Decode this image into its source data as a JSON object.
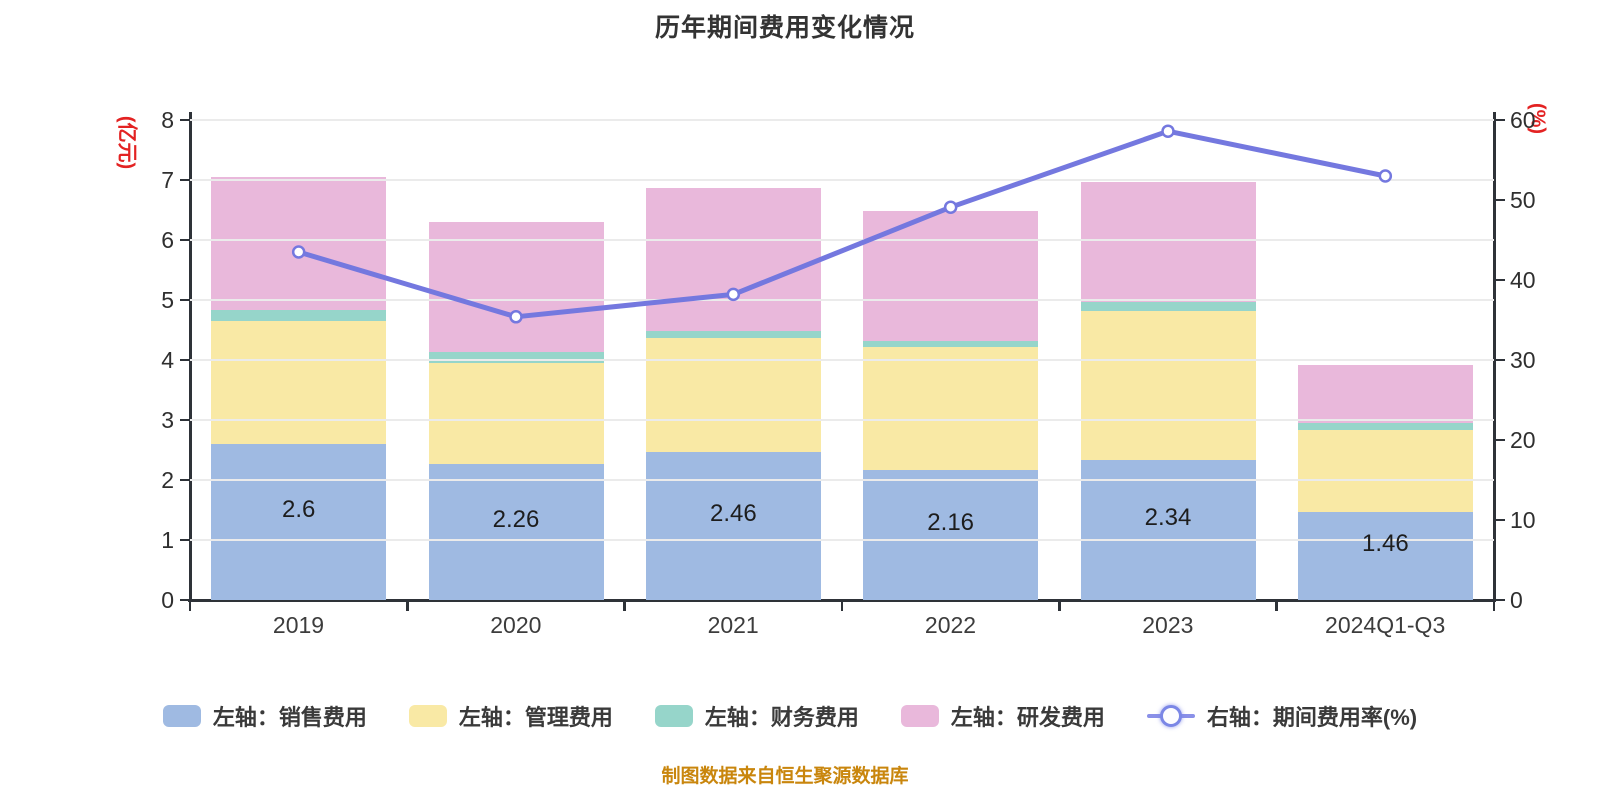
{
  "title": "历年期间费用变化情况",
  "footer": "制图数据来自恒生聚源数据库",
  "left_axis": {
    "name": "(亿元)",
    "min": 0,
    "max": 8,
    "tick_step": 1,
    "name_color": "#e32222"
  },
  "right_axis": {
    "name": "(%)",
    "min": 0,
    "max": 60,
    "tick_step": 10,
    "name_color": "#e32222"
  },
  "chart_data": {
    "type": "bar",
    "subtype": "stacked-bar-with-line",
    "title": "历年期间费用变化情况",
    "categories": [
      "2019",
      "2020",
      "2021",
      "2022",
      "2023",
      "2024Q1-Q3"
    ],
    "left_axis_range": [
      0,
      8
    ],
    "right_axis_range": [
      0,
      60
    ],
    "grid": "on",
    "legend_position": "bottom",
    "series": [
      {
        "name": "左轴：销售费用",
        "type": "bar",
        "axis": "left",
        "color": "#9fbae2",
        "values": [
          2.6,
          2.26,
          2.46,
          2.16,
          2.34,
          1.46
        ]
      },
      {
        "name": "左轴：管理费用",
        "type": "bar",
        "axis": "left",
        "color": "#f9e9a5",
        "values": [
          2.05,
          1.69,
          1.9,
          2.06,
          2.48,
          1.37
        ]
      },
      {
        "name": "左轴：财务费用",
        "type": "bar",
        "axis": "left",
        "color": "#96d5ca",
        "values": [
          0.18,
          0.18,
          0.12,
          0.1,
          0.15,
          0.12
        ]
      },
      {
        "name": "左轴：研发费用",
        "type": "bar",
        "axis": "left",
        "color": "#e9b8db",
        "values": [
          2.22,
          2.17,
          2.39,
          2.16,
          2.0,
          0.97
        ]
      },
      {
        "name": "右轴：期间费用率(%)",
        "type": "line",
        "axis": "right",
        "color": "#7478df",
        "values": [
          43.5,
          35.4,
          38.2,
          49.1,
          58.6,
          53.0
        ]
      }
    ],
    "bar_labels": [
      "2.6",
      "2.26",
      "2.46",
      "2.16",
      "2.34",
      "1.46"
    ]
  }
}
